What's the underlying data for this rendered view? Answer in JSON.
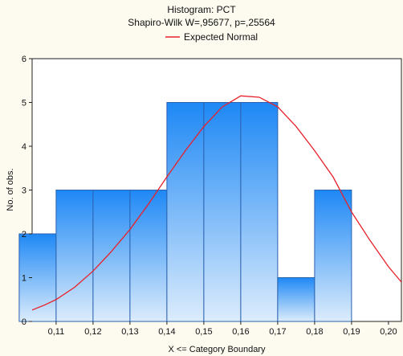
{
  "chart_data": {
    "type": "bar",
    "title": "Histogram: PCT",
    "subtitle": "Shapiro-Wilk W=,95677, p=,25564",
    "legend": {
      "entries": [
        {
          "label": "Expected Normal",
          "color": "#e8202a"
        }
      ],
      "placement": "top-center"
    },
    "xlabel": "X <= Category Boundary",
    "ylabel": "No. of obs.",
    "x_ticks": [
      "0,11",
      "0,12",
      "0,13",
      "0,14",
      "0,15",
      "0,16",
      "0,17",
      "0,18",
      "0,19",
      "0,20"
    ],
    "x_range": [
      0.1035,
      0.2035
    ],
    "y_ticks": [
      "0",
      "1",
      "2",
      "3",
      "4",
      "5",
      "6"
    ],
    "ylim": [
      0,
      6
    ],
    "grid": false,
    "bins": [
      {
        "lower": 0.1,
        "upper": 0.11,
        "count": 2
      },
      {
        "lower": 0.11,
        "upper": 0.12,
        "count": 3
      },
      {
        "lower": 0.12,
        "upper": 0.13,
        "count": 3
      },
      {
        "lower": 0.13,
        "upper": 0.14,
        "count": 3
      },
      {
        "lower": 0.14,
        "upper": 0.15,
        "count": 5
      },
      {
        "lower": 0.15,
        "upper": 0.16,
        "count": 5
      },
      {
        "lower": 0.16,
        "upper": 0.17,
        "count": 5
      },
      {
        "lower": 0.17,
        "upper": 0.18,
        "count": 1
      },
      {
        "lower": 0.18,
        "upper": 0.19,
        "count": 3
      }
    ],
    "series": [
      {
        "name": "Expected Normal",
        "type": "line",
        "x": [
          0.1035,
          0.107,
          0.11,
          0.115,
          0.12,
          0.125,
          0.13,
          0.135,
          0.14,
          0.145,
          0.15,
          0.155,
          0.16,
          0.165,
          0.17,
          0.175,
          0.18,
          0.185,
          0.19,
          0.195,
          0.2,
          0.2035
        ],
        "values": [
          0.26,
          0.38,
          0.5,
          0.78,
          1.15,
          1.6,
          2.1,
          2.68,
          3.3,
          3.9,
          4.45,
          4.9,
          5.15,
          5.12,
          4.9,
          4.45,
          3.9,
          3.3,
          2.5,
          1.85,
          1.25,
          0.9
        ]
      }
    ]
  },
  "colors": {
    "bar_top": "#1e88f5",
    "bar_bottom": "#dcecfc",
    "bar_stroke": "#2a62b0",
    "curve": "#e8202a",
    "background": "#fdfaf0",
    "plot_background": "#ffffff"
  }
}
